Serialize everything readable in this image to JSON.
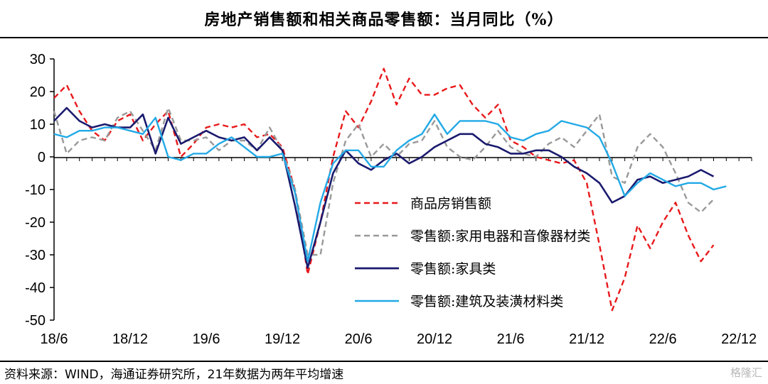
{
  "title": "房地产销售额和相关商品零售额：当月同比（%）",
  "source": "资料来源：WIND，海通证券研究所，21年数据为两年平均增速",
  "watermark": "格隆汇",
  "chart_data": {
    "type": "line",
    "title": "房地产销售额和相关商品零售额：当月同比（%）",
    "xlabel": "",
    "ylabel": "",
    "ylim": [
      -50,
      30
    ],
    "yticks": [
      30,
      20,
      10,
      0,
      -10,
      -20,
      -30,
      -40,
      -50
    ],
    "xtick_labels": [
      "18/6",
      "18/12",
      "19/6",
      "19/12",
      "20/6",
      "20/12",
      "21/6",
      "21/12",
      "22/6",
      "22/12"
    ],
    "grid": false,
    "legend_position": "center-right",
    "x": [
      "18/6",
      "18/7",
      "18/8",
      "18/9",
      "18/10",
      "18/11",
      "18/12",
      "19/1",
      "19/2",
      "19/3",
      "19/4",
      "19/5",
      "19/6",
      "19/7",
      "19/8",
      "19/9",
      "19/10",
      "19/11",
      "19/12",
      "20/1",
      "20/2",
      "20/3",
      "20/4",
      "20/5",
      "20/6",
      "20/7",
      "20/8",
      "20/9",
      "20/10",
      "20/11",
      "20/12",
      "21/1",
      "21/2",
      "21/3",
      "21/4",
      "21/5",
      "21/6",
      "21/7",
      "21/8",
      "21/9",
      "21/10",
      "21/11",
      "21/12",
      "22/1",
      "22/2",
      "22/3",
      "22/4",
      "22/5",
      "22/6",
      "22/7",
      "22/8",
      "22/9",
      "22/10",
      "22/11",
      "22/12",
      "23/1"
    ],
    "series": [
      {
        "name": "商品房销售额",
        "color": "#e8191b",
        "dash": "dashed",
        "values": [
          18,
          22,
          14,
          8,
          5,
          11,
          13,
          5,
          10,
          14,
          0,
          4,
          9,
          10,
          9,
          10,
          6,
          7,
          3,
          -10,
          -36,
          -20,
          0,
          14,
          9,
          17,
          27,
          16,
          24,
          19,
          19,
          21,
          22,
          16,
          12,
          16,
          5,
          3,
          0,
          -1,
          -2,
          -1,
          -8,
          -27,
          -47,
          -37,
          -21,
          -28,
          -20,
          -14,
          -24,
          -32,
          -27,
          null,
          null,
          null
        ]
      },
      {
        "name": "零售额:家用电器和音像器材类",
        "color": "#999999",
        "dash": "dashed",
        "values": [
          14,
          1,
          5,
          6,
          5,
          12,
          14,
          8,
          2,
          15,
          5,
          5,
          6,
          2,
          5,
          5,
          2,
          9,
          2,
          -10,
          -30,
          -30,
          -8,
          5,
          10,
          0,
          4,
          0,
          4,
          5,
          11,
          3,
          0,
          -1,
          3,
          8,
          3,
          1,
          0,
          4,
          6,
          3,
          8,
          13,
          -6,
          -8,
          3,
          7,
          3,
          -5,
          -14,
          -17,
          -13,
          null,
          null,
          null
        ]
      },
      {
        "name": "零售额:家具类",
        "color": "#1a1a6e",
        "dash": "solid",
        "values": [
          11,
          15,
          11,
          9,
          10,
          9,
          9,
          13,
          1,
          12,
          4,
          6,
          8,
          6,
          5,
          6,
          2,
          6,
          2,
          -15,
          -34,
          -20,
          -5,
          2,
          -2,
          -4,
          -1,
          1,
          -2,
          0,
          3,
          5,
          7,
          7,
          4,
          3,
          1,
          1,
          2,
          2,
          0,
          -3,
          -5,
          -8,
          -14,
          -12,
          -7,
          -6,
          -8,
          -7,
          -6,
          -4,
          -6,
          null,
          null,
          null
        ]
      },
      {
        "name": "零售额:建筑及装潢材料类",
        "color": "#22a9e6",
        "dash": "solid",
        "values": [
          7,
          6,
          8,
          8,
          9,
          9,
          8,
          7,
          12,
          0,
          -1,
          1,
          1,
          4,
          6,
          3,
          0,
          0,
          1,
          -11,
          -32,
          -14,
          -2,
          2,
          2,
          -3,
          -3,
          2,
          5,
          7,
          13,
          7,
          11,
          11,
          11,
          10,
          6,
          5,
          7,
          8,
          11,
          10,
          9,
          6,
          -2,
          -12,
          -8,
          -5,
          -7,
          -9,
          -8,
          -8,
          -10,
          -9,
          null,
          null
        ]
      }
    ],
    "legend": [
      "商品房销售额",
      "零售额:家用电器和音像器材类",
      "零售额:家具类",
      "零售额:建筑及装潢材料类"
    ],
    "legend_labels_display": [
      "商品房销售额",
      "零售额:家用电器和音像器材类",
      "零售额:家具类",
      "零售额:建筑及装潢材料类"
    ]
  }
}
